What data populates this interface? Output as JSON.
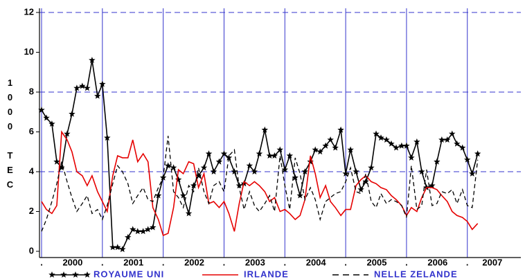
{
  "chart_data": {
    "type": "line",
    "ylabel": "1000 TEC",
    "x": [
      2000,
      2000.08,
      2000.17,
      2000.25,
      2000.33,
      2000.42,
      2000.5,
      2000.58,
      2000.67,
      2000.75,
      2000.83,
      2000.92,
      2001,
      2001.08,
      2001.17,
      2001.25,
      2001.33,
      2001.42,
      2001.5,
      2001.58,
      2001.67,
      2001.75,
      2001.83,
      2001.92,
      2002,
      2002.08,
      2002.17,
      2002.25,
      2002.33,
      2002.42,
      2002.5,
      2002.58,
      2002.67,
      2002.75,
      2002.83,
      2002.92,
      2003,
      2003.08,
      2003.17,
      2003.25,
      2003.33,
      2003.42,
      2003.5,
      2003.58,
      2003.67,
      2003.75,
      2003.83,
      2003.92,
      2004,
      2004.08,
      2004.17,
      2004.25,
      2004.33,
      2004.42,
      2004.5,
      2004.58,
      2004.67,
      2004.75,
      2004.83,
      2004.92,
      2005,
      2005.08,
      2005.17,
      2005.25,
      2005.33,
      2005.42,
      2005.5,
      2005.58,
      2005.67,
      2005.75,
      2005.83,
      2005.92,
      2006,
      2006.08,
      2006.17,
      2006.25,
      2006.33,
      2006.42,
      2006.5,
      2006.58,
      2006.67,
      2006.75,
      2006.83,
      2006.92,
      2007,
      2007.08,
      2007.17
    ],
    "series": [
      {
        "name": "ROYAUME UNI",
        "color": "#000000",
        "dash": false,
        "marker": "star",
        "values": [
          7.1,
          6.7,
          6.4,
          4.5,
          4.2,
          5.9,
          6.9,
          8.2,
          8.3,
          8.2,
          9.6,
          7.8,
          8.4,
          5.7,
          0.2,
          0.2,
          0.1,
          0.7,
          1.1,
          1.0,
          1.0,
          1.1,
          1.2,
          2.8,
          3.7,
          4.3,
          4.2,
          3.6,
          2.8,
          1.9,
          3.3,
          3.8,
          4.2,
          4.9,
          4.0,
          4.5,
          4.9,
          4.7,
          4.0,
          3.3,
          3.4,
          4.3,
          4.0,
          4.9,
          6.1,
          4.8,
          4.8,
          5.1,
          4.1,
          4.8,
          3.7,
          2.8,
          4.0,
          4.5,
          5.1,
          5.0,
          5.3,
          5.6,
          5.2,
          6.1,
          3.9,
          5.1,
          4.0,
          3.1,
          3.5,
          4.2,
          5.9,
          5.7,
          5.6,
          5.4,
          5.2,
          5.3,
          5.3,
          4.7,
          5.5,
          4.0,
          3.2,
          3.3,
          4.5,
          5.6,
          5.6,
          5.9,
          5.4,
          5.2,
          4.6,
          3.9,
          4.9
        ]
      },
      {
        "name": "IRLANDE",
        "color": "#e60000",
        "dash": false,
        "marker": "none",
        "values": [
          2.5,
          2.1,
          1.9,
          2.3,
          6.0,
          5.6,
          5.0,
          4.0,
          3.8,
          3.3,
          3.8,
          3.0,
          2.5,
          2.0,
          3.8,
          4.8,
          4.7,
          4.7,
          5.6,
          4.5,
          4.9,
          4.5,
          2.2,
          1.6,
          0.8,
          0.9,
          2.2,
          4.1,
          3.9,
          4.5,
          4.4,
          3.2,
          3.9,
          2.4,
          2.5,
          2.2,
          2.5,
          1.9,
          1.0,
          2.4,
          3.5,
          3.3,
          3.5,
          3.3,
          3.0,
          2.5,
          2.7,
          2.0,
          2.1,
          1.9,
          1.6,
          1.8,
          2.6,
          4.8,
          3.9,
          2.7,
          3.3,
          2.5,
          2.2,
          1.8,
          2.1,
          2.1,
          3.3,
          3.6,
          3.8,
          3.5,
          3.4,
          3.2,
          3.1,
          2.8,
          2.6,
          2.3,
          1.8,
          2.2,
          2.0,
          2.7,
          3.2,
          3.2,
          3.1,
          2.8,
          2.5,
          2.0,
          1.8,
          1.7,
          1.5,
          1.1,
          1.4
        ]
      },
      {
        "name": "NELLE ZELANDE",
        "color": "#000000",
        "dash": true,
        "marker": "none",
        "values": [
          1.0,
          1.6,
          2.5,
          3.4,
          4.5,
          3.5,
          2.7,
          2.0,
          2.4,
          2.8,
          1.9,
          2.1,
          1.6,
          2.3,
          3.4,
          4.3,
          4.0,
          3.4,
          2.4,
          2.8,
          3.2,
          2.6,
          2.5,
          3.2,
          3.7,
          5.8,
          3.0,
          2.7,
          2.2,
          3.3,
          3.0,
          4.2,
          3.0,
          2.4,
          3.3,
          3.5,
          3.0,
          4.8,
          5.1,
          3.2,
          2.1,
          3.0,
          2.3,
          2.0,
          2.4,
          2.8,
          2.0,
          4.8,
          3.3,
          2.1,
          4.7,
          3.9,
          2.6,
          3.2,
          2.6,
          1.6,
          2.5,
          2.7,
          2.9,
          3.0,
          3.5,
          4.2,
          3.0,
          2.9,
          3.9,
          2.5,
          2.2,
          2.9,
          2.4,
          2.6,
          2.5,
          2.3,
          1.7,
          4.3,
          2.1,
          2.3,
          4.1,
          2.3,
          2.4,
          3.0,
          2.9,
          3.1,
          2.4,
          3.1,
          2.3,
          2.2,
          4.6
        ]
      }
    ],
    "xlim": [
      2000,
      2007.8
    ],
    "xticks": [
      {
        "value": 2000,
        "label": "."
      },
      {
        "value": 2001,
        "label": "."
      },
      {
        "value": 2002,
        "label": "."
      },
      {
        "value": 2003,
        "label": "."
      },
      {
        "value": 2004,
        "label": "."
      },
      {
        "value": 2005,
        "label": "."
      },
      {
        "value": 2006,
        "label": "."
      },
      {
        "value": 2007,
        "label": "."
      }
    ],
    "year_labels": [
      "2000",
      "2001",
      "2002",
      "2003",
      "2004",
      "2005",
      "2006",
      "2007"
    ],
    "ylim": [
      0,
      12
    ],
    "yticks": [
      0,
      2,
      4,
      6,
      8,
      10,
      12
    ],
    "ygrid": [
      4,
      8,
      12
    ],
    "xgrid": true,
    "grid_color": "#3333cc",
    "legend": "bottom"
  }
}
